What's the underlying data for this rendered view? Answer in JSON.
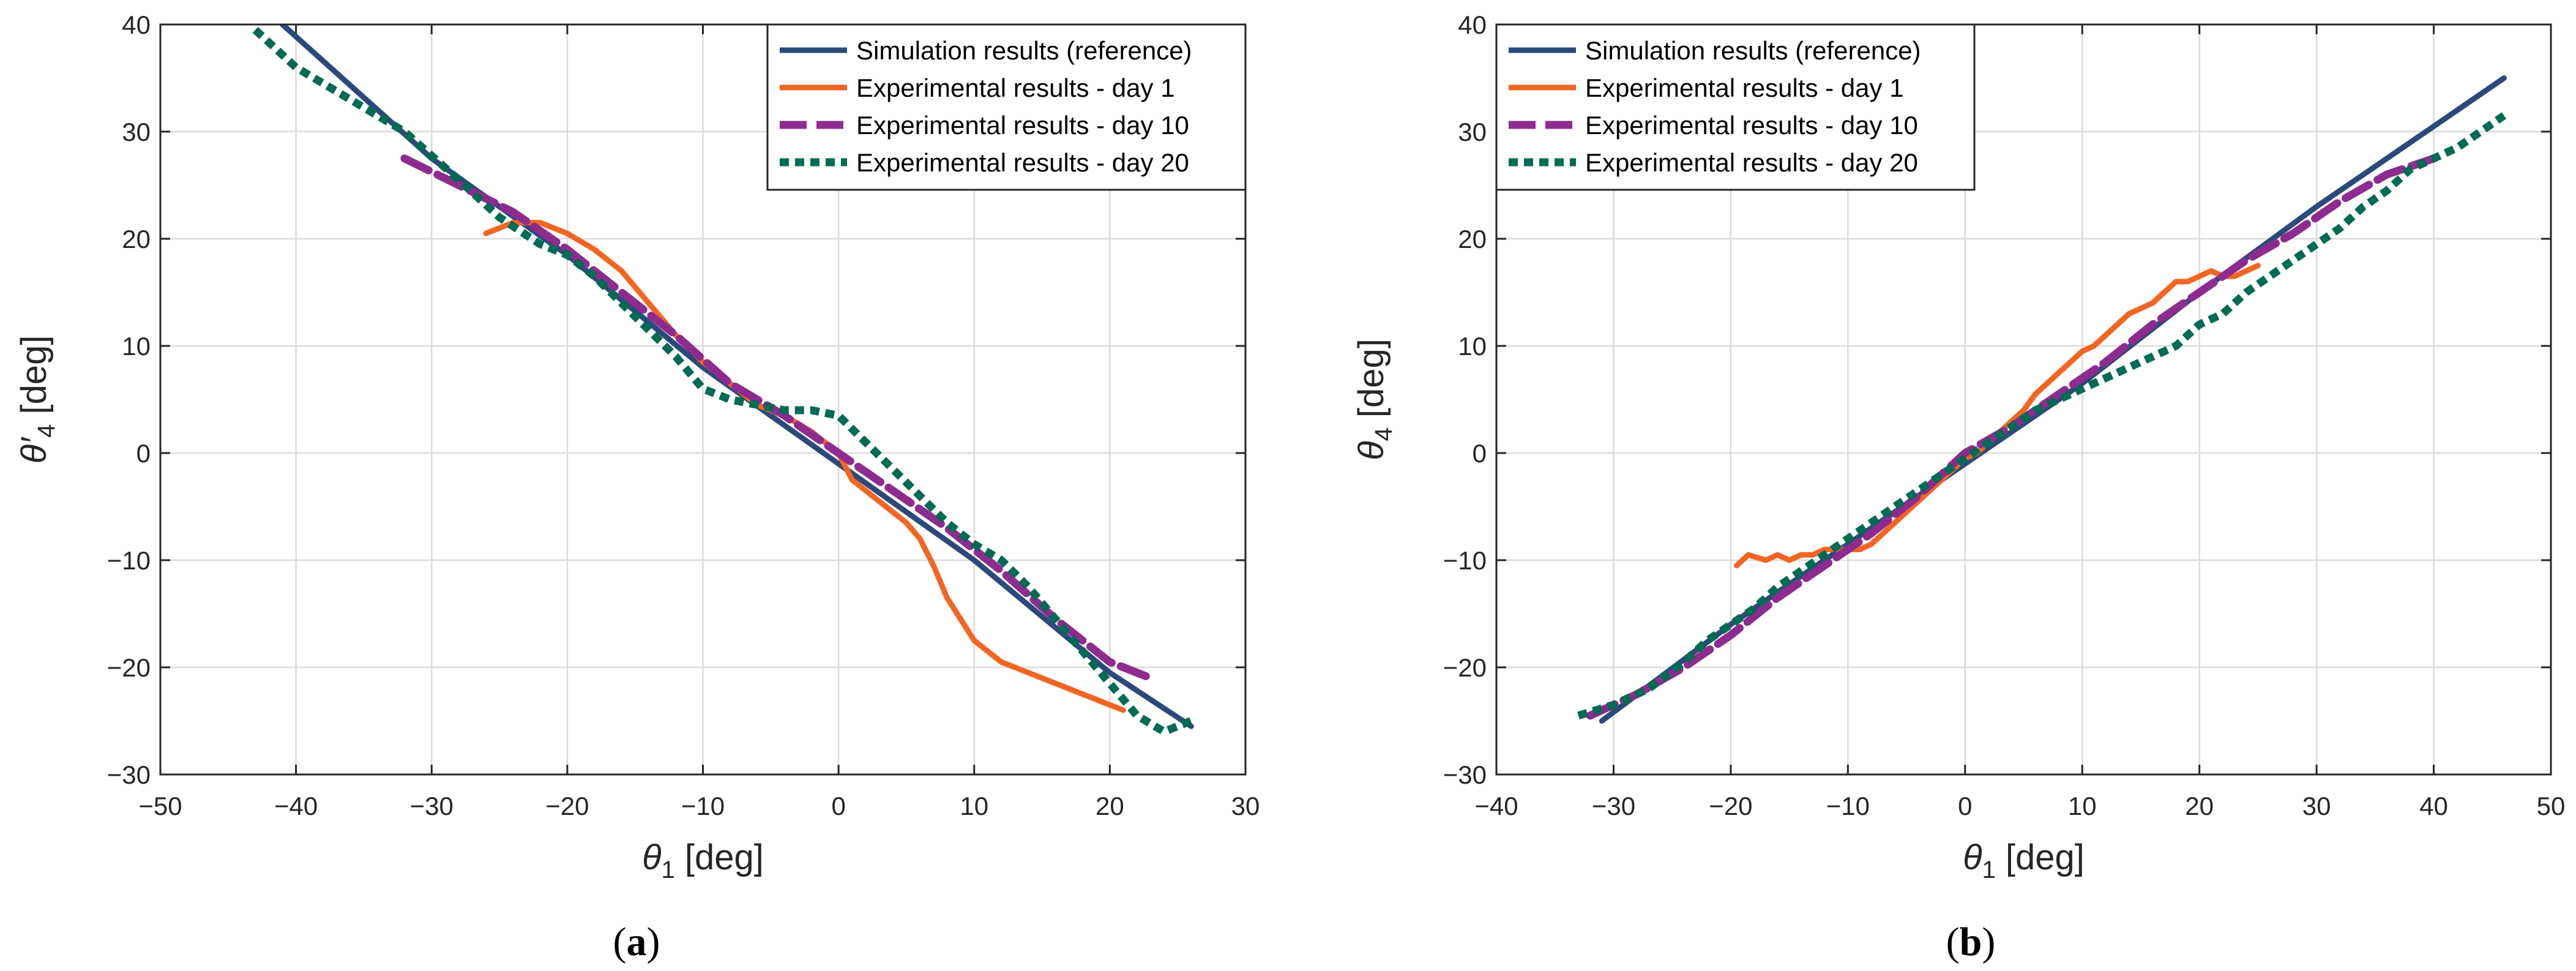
{
  "colors": {
    "simulation": "#2b4a7a",
    "day1": "#f26522",
    "day10": "#8e2b8f",
    "day20": "#006b54"
  },
  "chart_data": [
    {
      "type": "line",
      "panel": "a",
      "caption_letter": "a",
      "xlabel": "θ",
      "xlabel_sub": "1",
      "xlabel_unit": " [deg]",
      "ylabel": "θ′",
      "ylabel_sub": "4",
      "ylabel_unit": " [deg]",
      "xlim": [
        -50,
        30
      ],
      "ylim": [
        -30,
        40
      ],
      "xticks": [
        -50,
        -40,
        -30,
        -20,
        -10,
        0,
        10,
        20,
        30
      ],
      "yticks": [
        -30,
        -20,
        -10,
        0,
        10,
        20,
        30,
        40
      ],
      "xtick_labels": [
        "−50",
        "−40",
        "−30",
        "−20",
        "−10",
        "0",
        "10",
        "20",
        "30"
      ],
      "ytick_labels": [
        "−30",
        "−20",
        "−10",
        "0",
        "10",
        "20",
        "30",
        "40"
      ],
      "grid": true,
      "legend_position": "top-right",
      "series": [
        {
          "name": "Simulation results (reference)",
          "color_key": "simulation",
          "style": "solid",
          "x": [
            -41,
            -30,
            -20,
            -10,
            0,
            10,
            20,
            26
          ],
          "y": [
            40,
            27.5,
            18.5,
            8,
            -1,
            -10,
            -20.5,
            -25.5
          ]
        },
        {
          "name": "Experimental results - day 1",
          "color_key": "day1",
          "style": "solid",
          "x": [
            -26,
            -24,
            -22,
            -20,
            -18,
            -16,
            -14,
            -12,
            -10,
            -8,
            -6,
            -4,
            -2,
            0,
            1,
            2,
            3,
            4,
            5,
            6,
            7,
            8,
            9,
            10,
            11,
            12,
            13,
            14,
            15,
            16,
            17,
            18,
            19,
            20,
            21
          ],
          "y": [
            20.5,
            21.5,
            21.5,
            20.5,
            19,
            17,
            14,
            11,
            8.5,
            6.5,
            4.5,
            3.5,
            2,
            0,
            -2.5,
            -3.5,
            -4.5,
            -5.5,
            -6.5,
            -8,
            -10.5,
            -13.5,
            -15.5,
            -17.5,
            -18.5,
            -19.5,
            -20,
            -20.5,
            -21,
            -21.5,
            -22,
            -22.5,
            -23,
            -23.5,
            -24
          ]
        },
        {
          "name": "Experimental results - day 10",
          "color_key": "day10",
          "style": "dashed",
          "x": [
            -32,
            -28,
            -24,
            -20,
            -16,
            -12,
            -8,
            -4,
            0,
            4,
            8,
            12,
            16,
            20,
            23
          ],
          "y": [
            27.5,
            25,
            22.5,
            19,
            15,
            11,
            6.5,
            3.5,
            0,
            -3.5,
            -7,
            -11,
            -15.5,
            -19.5,
            -21
          ]
        },
        {
          "name": "Experimental results - day 20",
          "color_key": "day20",
          "style": "dotted",
          "x": [
            -43,
            -40,
            -36,
            -32,
            -28,
            -25,
            -22,
            -20,
            -18,
            -16,
            -14,
            -12,
            -10,
            -8,
            -6,
            -4,
            -2,
            0,
            2,
            4,
            6,
            8,
            10,
            12,
            14,
            16,
            18,
            20,
            22,
            24,
            26
          ],
          "y": [
            39.5,
            36,
            33,
            30,
            25.5,
            22,
            19.5,
            18.5,
            16.5,
            14,
            11.5,
            9,
            6,
            5,
            4.5,
            4,
            4,
            3.5,
            1,
            -1.5,
            -4,
            -6.5,
            -8.5,
            -10,
            -12.5,
            -15.5,
            -18.5,
            -21.5,
            -24.5,
            -26,
            -25
          ]
        }
      ]
    },
    {
      "type": "line",
      "panel": "b",
      "caption_letter": "b",
      "xlabel": "θ",
      "xlabel_sub": "1",
      "xlabel_unit": " [deg]",
      "ylabel": "θ",
      "ylabel_sub": "4",
      "ylabel_unit": " [deg]",
      "xlim": [
        -40,
        50
      ],
      "ylim": [
        -30,
        40
      ],
      "xticks": [
        -40,
        -30,
        -20,
        -10,
        0,
        10,
        20,
        30,
        40,
        50
      ],
      "yticks": [
        -30,
        -20,
        -10,
        0,
        10,
        20,
        30,
        40
      ],
      "xtick_labels": [
        "−40",
        "−30",
        "−20",
        "−10",
        "0",
        "10",
        "20",
        "30",
        "40",
        "50"
      ],
      "ytick_labels": [
        "−30",
        "−20",
        "−10",
        "0",
        "10",
        "20",
        "30",
        "40"
      ],
      "grid": true,
      "legend_position": "top-left",
      "series": [
        {
          "name": "Simulation results (reference)",
          "color_key": "simulation",
          "style": "solid",
          "x": [
            -31,
            -20,
            -10,
            0,
            10,
            20,
            30,
            40,
            46
          ],
          "y": [
            -25,
            -16,
            -8.5,
            -1,
            6.5,
            15,
            23,
            30.5,
            35
          ]
        },
        {
          "name": "Experimental results - day 1",
          "color_key": "day1",
          "style": "solid",
          "x": [
            -19.5,
            -18.5,
            -17,
            -16,
            -15,
            -14,
            -13,
            -12,
            -11,
            -10,
            -9,
            -8,
            -7,
            -6,
            -5,
            -4,
            -3,
            -2,
            -1,
            0,
            1,
            2,
            3,
            4,
            5,
            6,
            7,
            8,
            9,
            10,
            11,
            12,
            13,
            14,
            15,
            16,
            17,
            18,
            19,
            20,
            21,
            22,
            23,
            24,
            25
          ],
          "y": [
            -10.5,
            -9.5,
            -10,
            -9.5,
            -10,
            -9.5,
            -9.5,
            -9,
            -9,
            -9,
            -9,
            -8.5,
            -7.5,
            -6.5,
            -5.5,
            -4.5,
            -3.5,
            -2.5,
            -1.5,
            -0.5,
            0,
            1,
            2,
            3,
            4,
            5.5,
            6.5,
            7.5,
            8.5,
            9.5,
            10,
            11,
            12,
            13,
            13.5,
            14,
            15,
            16,
            16,
            16.5,
            17,
            16.5,
            16.5,
            17,
            17.5
          ]
        },
        {
          "name": "Experimental results - day 10",
          "color_key": "day10",
          "style": "dashed",
          "x": [
            -32,
            -28,
            -24,
            -20,
            -16,
            -12,
            -8,
            -4,
            0,
            4,
            8,
            12,
            16,
            20,
            24,
            28,
            32,
            36,
            40
          ],
          "y": [
            -24.5,
            -22.5,
            -20,
            -17,
            -13.5,
            -10.5,
            -7.5,
            -4,
            0,
            2.5,
            5.5,
            8.5,
            12,
            15,
            18,
            20.5,
            23.5,
            26,
            27.5
          ]
        },
        {
          "name": "Experimental results - day 20",
          "color_key": "day20",
          "style": "dotted",
          "x": [
            -33,
            -30,
            -27,
            -24,
            -22,
            -20,
            -18,
            -16,
            -14,
            -12,
            -10,
            -8,
            -6,
            -4,
            -2,
            0,
            2,
            4,
            6,
            8,
            10,
            12,
            14,
            16,
            18,
            20,
            22,
            24,
            26,
            28,
            30,
            32,
            34,
            36,
            38,
            40,
            42,
            44,
            46
          ],
          "y": [
            -24.5,
            -23.5,
            -22,
            -19.5,
            -17.5,
            -16,
            -14.5,
            -12.5,
            -11,
            -9.5,
            -8,
            -6.5,
            -5,
            -3.5,
            -2,
            -0.5,
            1,
            2.5,
            4,
            5,
            6,
            7,
            8,
            9,
            10,
            12,
            13,
            15,
            16.5,
            18,
            19.5,
            21,
            23,
            24.5,
            26.5,
            27.5,
            28.5,
            30,
            31.5
          ]
        }
      ]
    }
  ]
}
